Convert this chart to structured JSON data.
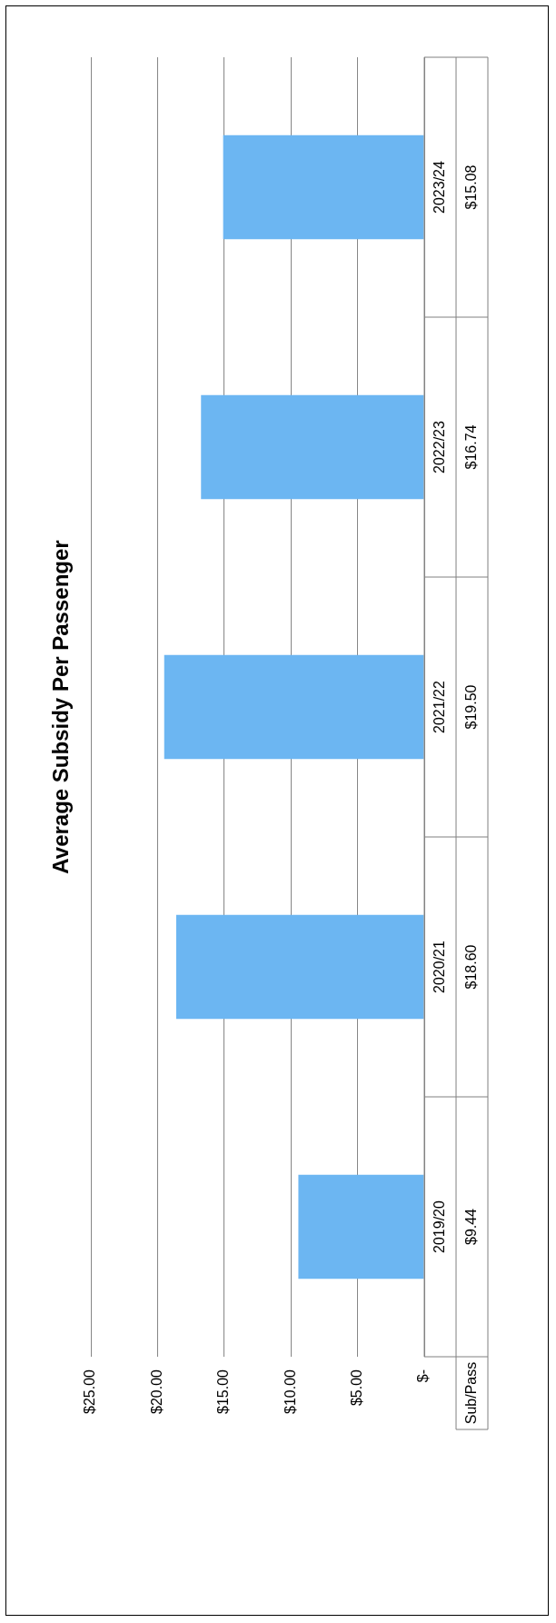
{
  "chart_data": {
    "type": "bar",
    "title": "Average Subsidy Per Passenger",
    "orientation": "horizontal",
    "categories": [
      "2023/24",
      "2022/23",
      "2021/22",
      "2020/21",
      "2019/20"
    ],
    "series": [
      {
        "name": "Sub/Pass",
        "color": "#6cb6f2",
        "values": [
          15.08,
          16.74,
          19.5,
          18.6,
          9.44
        ],
        "value_labels": [
          "$15.08",
          "$16.74",
          "$19.50",
          "$18.60",
          "$9.44"
        ]
      }
    ],
    "xlim": [
      25,
      0
    ],
    "xticks": [
      {
        "value": 25,
        "label": "$25.00"
      },
      {
        "value": 20,
        "label": "$20.00"
      },
      {
        "value": 15,
        "label": "$15.00"
      },
      {
        "value": 10,
        "label": "$10.00"
      },
      {
        "value": 5,
        "label": "$5.00"
      },
      {
        "value": 0,
        "label": "$-"
      }
    ],
    "grid": "x",
    "legend": false
  }
}
